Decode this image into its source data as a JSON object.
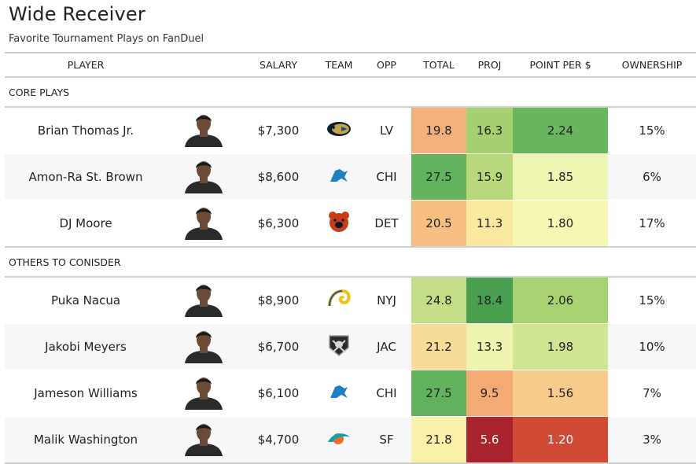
{
  "title": "Wide Receiver",
  "subtitle": "Favorite Tournament Plays on FanDuel",
  "columns": [
    "PLAYER",
    "SALARY",
    "TEAM",
    "OPP",
    "TOTAL",
    "PROJ",
    "POINT PER $",
    "OWNERSHIP"
  ],
  "groups": [
    {
      "label": "CORE PLAYS",
      "rows": [
        {
          "player": "Brian Thomas Jr.",
          "salary": "$7,300",
          "team_icon": "jaguars-logo-icon",
          "opp": "LV",
          "total": "19.8",
          "proj": "16.3",
          "pps": "2.24",
          "ownership": "15%",
          "total_color": "#f4b07a",
          "proj_color": "#a6d173",
          "pps_color": "#69b560"
        },
        {
          "player": "Amon-Ra St. Brown",
          "salary": "$8,600",
          "team_icon": "lions-logo-icon",
          "opp": "CHI",
          "total": "27.5",
          "proj": "15.9",
          "pps": "1.85",
          "ownership": "6%",
          "total_color": "#63b25d",
          "proj_color": "#b7d97c",
          "pps_color": "#eef5b3"
        },
        {
          "player": "DJ Moore",
          "salary": "$6,300",
          "team_icon": "bears-logo-icon",
          "opp": "DET",
          "total": "20.5",
          "proj": "11.3",
          "pps": "1.80",
          "ownership": "17%",
          "total_color": "#f6be80",
          "proj_color": "#fbe9a0",
          "pps_color": "#f5f7b3"
        }
      ]
    },
    {
      "label": "OTHERS TO CONISDER",
      "rows": [
        {
          "player": "Puka Nacua",
          "salary": "$8,900",
          "team_icon": "rams-logo-icon",
          "opp": "NYJ",
          "total": "24.8",
          "proj": "18.4",
          "pps": "2.06",
          "ownership": "15%",
          "total_color": "#c3de86",
          "proj_color": "#4a9e50",
          "pps_color": "#a7d271"
        },
        {
          "player": "Jakobi Meyers",
          "salary": "$6,700",
          "team_icon": "raiders-logo-icon",
          "opp": "JAC",
          "total": "21.2",
          "proj": "13.3",
          "pps": "1.98",
          "ownership": "10%",
          "total_color": "#f9dc9a",
          "proj_color": "#eef3b1",
          "pps_color": "#cfe594"
        },
        {
          "player": "Jameson Williams",
          "salary": "$6,100",
          "team_icon": "lions-logo-icon",
          "opp": "CHI",
          "total": "27.5",
          "proj": "9.5",
          "pps": "1.56",
          "ownership": "7%",
          "total_color": "#63b25d",
          "proj_color": "#f3aa73",
          "pps_color": "#f7cc8b"
        },
        {
          "player": "Malik Washington",
          "salary": "$4,700",
          "team_icon": "dolphins-logo-icon",
          "opp": "SF",
          "total": "21.8",
          "proj": "5.6",
          "pps": "1.20",
          "ownership": "3%",
          "total_color": "#faf0aa",
          "proj_color": "#a8232d",
          "pps_color": "#cf4a37"
        }
      ]
    }
  ],
  "chart_data": {
    "type": "table",
    "title": "Wide Receiver",
    "subtitle": "Favorite Tournament Plays on FanDuel",
    "columns": [
      "PLAYER",
      "SALARY",
      "TEAM",
      "OPP",
      "TOTAL",
      "PROJ",
      "POINT PER $",
      "OWNERSHIP"
    ],
    "rows": [
      [
        "Brian Thomas Jr.",
        "$7,300",
        "JAX",
        "LV",
        19.8,
        16.3,
        2.24,
        "15%"
      ],
      [
        "Amon-Ra St. Brown",
        "$8,600",
        "DET",
        "CHI",
        27.5,
        15.9,
        1.85,
        "6%"
      ],
      [
        "DJ Moore",
        "$6,300",
        "CHI",
        "DET",
        20.5,
        11.3,
        1.8,
        "17%"
      ],
      [
        "Puka Nacua",
        "$8,900",
        "LAR",
        "NYJ",
        24.8,
        18.4,
        2.06,
        "15%"
      ],
      [
        "Jakobi Meyers",
        "$6,700",
        "LV",
        "JAC",
        21.2,
        13.3,
        1.98,
        "10%"
      ],
      [
        "Jameson Williams",
        "$6,100",
        "DET",
        "CHI",
        27.5,
        9.5,
        1.56,
        "7%"
      ],
      [
        "Malik Washington",
        "$4,700",
        "MIA",
        "SF",
        21.8,
        5.6,
        1.2,
        "3%"
      ]
    ]
  }
}
